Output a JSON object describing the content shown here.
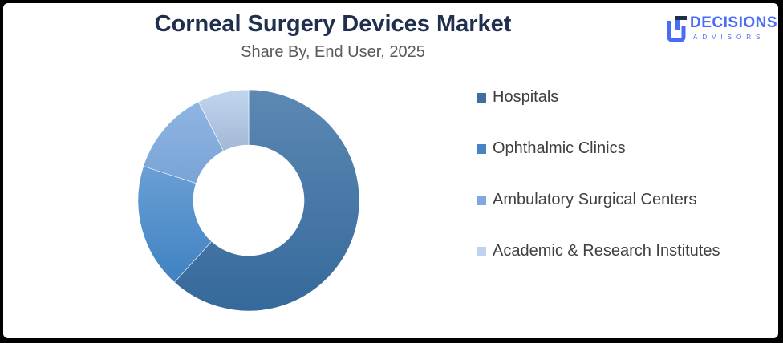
{
  "header": {
    "title": "Corneal Surgery Devices Market",
    "subtitle": "Share By, End User, 2025"
  },
  "logo": {
    "line1": "DECISIONS",
    "line2": "ADVISORS",
    "color": "#4a6cf7"
  },
  "chart_data": {
    "type": "pie",
    "variant": "donut",
    "title": "Corneal Surgery Devices Market",
    "subtitle": "Share By, End User, 2025",
    "categories": [
      "Hospitals",
      "Ophthalmic Clinics",
      "Ambulatory Surgical Centers",
      "Academic & Research Institutes"
    ],
    "values": [
      61.7,
      18.3,
      12.5,
      7.5
    ],
    "unit": "%",
    "colors": [
      [
        "#5c88b3",
        "#35699b"
      ],
      [
        "#6a9fd4",
        "#3f82c2"
      ],
      [
        "#8eb5e3",
        "#7aa4d6"
      ],
      [
        "#c2d5ee",
        "#a3b8d6"
      ]
    ],
    "legend_colors": [
      "#3d6fa0",
      "#4684c6",
      "#7fa9dc",
      "#c0d3ee"
    ],
    "legend_position": "right"
  }
}
